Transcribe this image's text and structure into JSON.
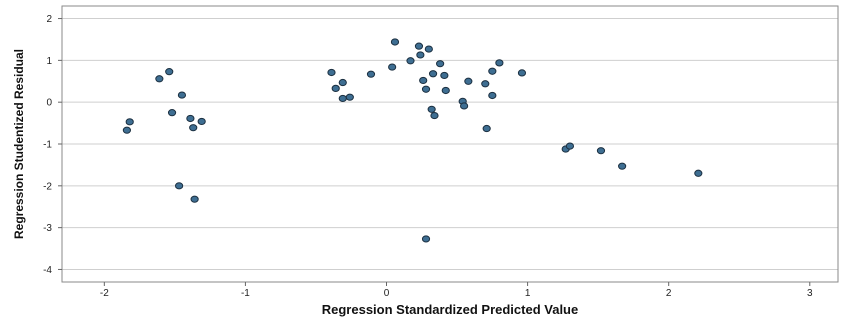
{
  "chart_data": {
    "type": "scatter",
    "title": "",
    "xlabel": "Regression Standardized Predicted Value",
    "ylabel": "Regression Studentized Residual",
    "xlim": [
      -2.3,
      3.2
    ],
    "ylim": [
      -4.3,
      2.3
    ],
    "xticks": [
      -2,
      -1,
      0,
      1,
      2,
      3
    ],
    "yticks": [
      2,
      1,
      0,
      -1,
      -2,
      -3,
      -4
    ],
    "grid": "horizontal",
    "legend": "none",
    "point_color": "#3e6e92",
    "point_edge": "#1b2f40",
    "points": [
      {
        "x": -1.84,
        "y": -0.67
      },
      {
        "x": -1.82,
        "y": -0.47
      },
      {
        "x": -1.61,
        "y": 0.56
      },
      {
        "x": -1.54,
        "y": 0.73
      },
      {
        "x": -1.52,
        "y": -0.25
      },
      {
        "x": -1.47,
        "y": -2.0
      },
      {
        "x": -1.45,
        "y": 0.17
      },
      {
        "x": -1.39,
        "y": -0.39
      },
      {
        "x": -1.37,
        "y": -0.61
      },
      {
        "x": -1.36,
        "y": -2.32
      },
      {
        "x": -1.31,
        "y": -0.46
      },
      {
        "x": -0.39,
        "y": 0.71
      },
      {
        "x": -0.36,
        "y": 0.33
      },
      {
        "x": -0.31,
        "y": 0.47
      },
      {
        "x": -0.31,
        "y": 0.09
      },
      {
        "x": -0.26,
        "y": 0.12
      },
      {
        "x": -0.11,
        "y": 0.67
      },
      {
        "x": 0.04,
        "y": 0.84
      },
      {
        "x": 0.06,
        "y": 1.44
      },
      {
        "x": 0.17,
        "y": 0.99
      },
      {
        "x": 0.23,
        "y": 1.34
      },
      {
        "x": 0.24,
        "y": 1.13
      },
      {
        "x": 0.26,
        "y": 0.52
      },
      {
        "x": 0.28,
        "y": 0.31
      },
      {
        "x": 0.28,
        "y": -3.27
      },
      {
        "x": 0.3,
        "y": 1.27
      },
      {
        "x": 0.32,
        "y": -0.17
      },
      {
        "x": 0.33,
        "y": 0.68
      },
      {
        "x": 0.34,
        "y": -0.32
      },
      {
        "x": 0.38,
        "y": 0.92
      },
      {
        "x": 0.41,
        "y": 0.64
      },
      {
        "x": 0.42,
        "y": 0.28
      },
      {
        "x": 0.54,
        "y": 0.02
      },
      {
        "x": 0.55,
        "y": -0.09
      },
      {
        "x": 0.58,
        "y": 0.5
      },
      {
        "x": 0.7,
        "y": 0.44
      },
      {
        "x": 0.71,
        "y": -0.63
      },
      {
        "x": 0.75,
        "y": 0.74
      },
      {
        "x": 0.75,
        "y": 0.16
      },
      {
        "x": 0.8,
        "y": 0.94
      },
      {
        "x": 0.96,
        "y": 0.7
      },
      {
        "x": 1.27,
        "y": -1.12
      },
      {
        "x": 1.3,
        "y": -1.05
      },
      {
        "x": 1.52,
        "y": -1.16
      },
      {
        "x": 1.67,
        "y": -1.53
      },
      {
        "x": 2.21,
        "y": -1.7
      }
    ]
  }
}
